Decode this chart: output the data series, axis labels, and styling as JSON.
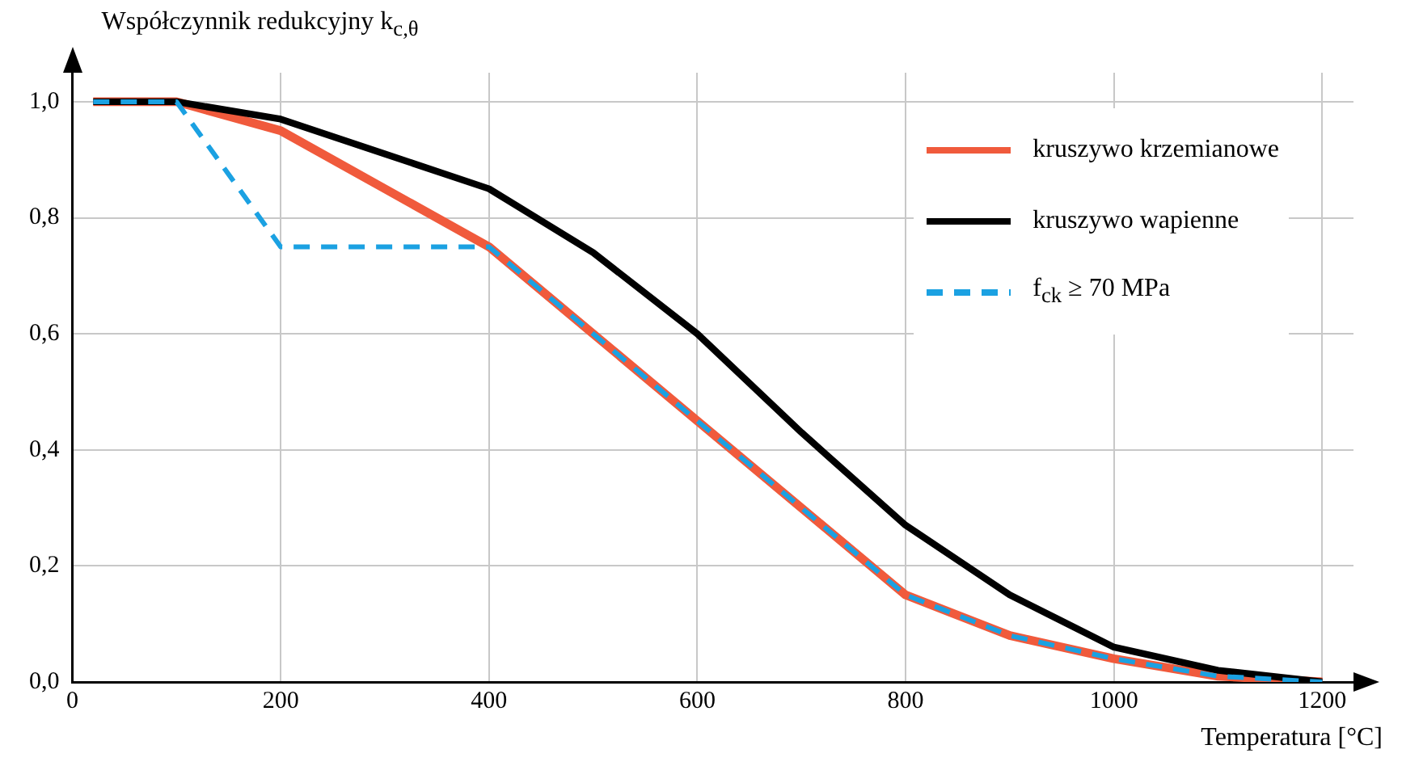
{
  "chart_data": {
    "type": "line",
    "xlabel": "Temperatura [°C]",
    "ylabel": "Współczynnik redukcyjny k$_{c,θ}$",
    "xlim": [
      0,
      1230
    ],
    "ylim": [
      0,
      1.05
    ],
    "xticks": [
      0,
      200,
      400,
      600,
      800,
      1000,
      1200
    ],
    "yticks": [
      {
        "value": 0,
        "label": "0,0"
      },
      {
        "value": 0.2,
        "label": "0,2"
      },
      {
        "value": 0.4,
        "label": "0,4"
      },
      {
        "value": 0.6,
        "label": "0,6"
      },
      {
        "value": 0.8,
        "label": "0,8"
      },
      {
        "value": 1,
        "label": "1,0"
      }
    ],
    "grid": true,
    "legend": "top right",
    "marker": "none",
    "series": [
      {
        "name": "kruszywo krzemianowe",
        "color": "#f05a3c",
        "line_style": "solid",
        "x": [
          20,
          100,
          200,
          300,
          400,
          500,
          600,
          700,
          800,
          900,
          1000,
          1100,
          1200
        ],
        "values": [
          1,
          1,
          0.95,
          0.85,
          0.75,
          0.6,
          0.45,
          0.3,
          0.15,
          0.08,
          0.04,
          0.01,
          0
        ]
      },
      {
        "name": "kruszywo wapienne",
        "color": "#000000",
        "line_style": "solid",
        "x": [
          20,
          100,
          200,
          300,
          400,
          500,
          600,
          700,
          800,
          900,
          1000,
          1100,
          1200
        ],
        "values": [
          1,
          1,
          0.97,
          0.91,
          0.85,
          0.74,
          0.6,
          0.43,
          0.27,
          0.15,
          0.06,
          0.02,
          0
        ]
      },
      {
        "name": "f$_{ck}$ ≥ 70 MPa",
        "color": "#1ba1e2",
        "line_style": "dashed",
        "x": [
          20,
          100,
          200,
          400,
          500,
          600,
          700,
          800,
          900,
          1000,
          1100,
          1200
        ],
        "values": [
          1,
          1,
          0.75,
          0.75,
          0.6,
          0.45,
          0.3,
          0.15,
          0.08,
          0.04,
          0.01,
          0
        ]
      }
    ]
  }
}
